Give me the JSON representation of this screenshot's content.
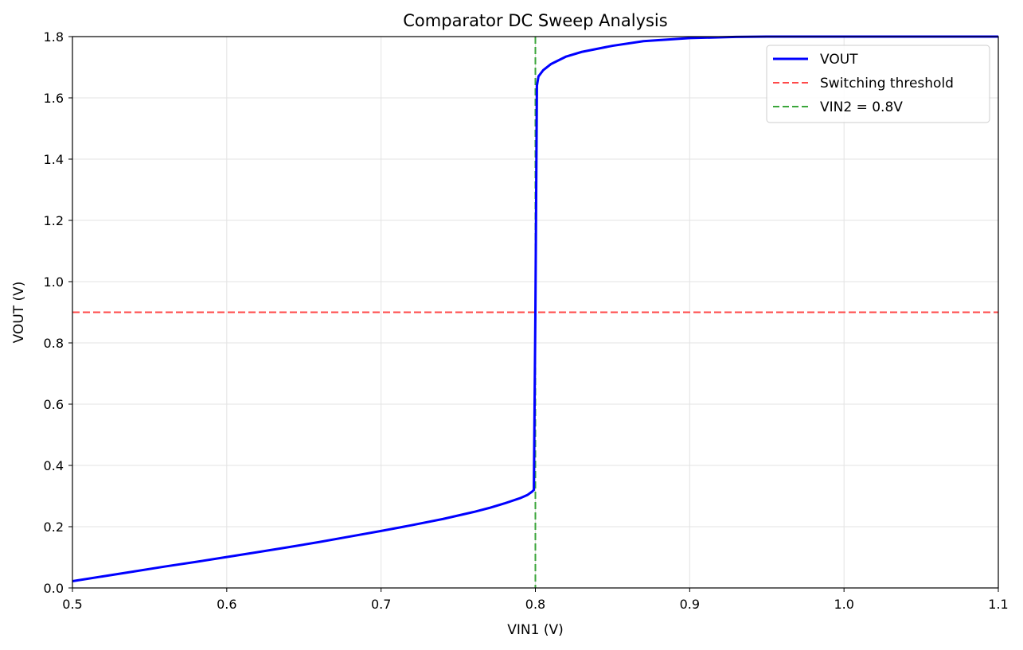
{
  "chart_data": {
    "type": "line",
    "title": "Comparator DC Sweep Analysis",
    "xlabel": "VIN1 (V)",
    "ylabel": "VOUT (V)",
    "xlim": [
      0.5,
      1.1
    ],
    "ylim": [
      0.0,
      1.8
    ],
    "xticks": [
      "0.5",
      "0.6",
      "0.7",
      "0.8",
      "0.9",
      "1.0",
      "1.1"
    ],
    "xtick_values": [
      0.5,
      0.6,
      0.7,
      0.8,
      0.9,
      1.0,
      1.1
    ],
    "yticks": [
      "0.0",
      "0.2",
      "0.4",
      "0.6",
      "0.8",
      "1.0",
      "1.2",
      "1.4",
      "1.6",
      "1.8"
    ],
    "ytick_values": [
      0.0,
      0.2,
      0.4,
      0.6,
      0.8,
      1.0,
      1.2,
      1.4,
      1.6,
      1.8
    ],
    "grid": true,
    "legend_position": "top-right",
    "series": [
      {
        "name": "VOUT",
        "color": "#0000ff",
        "style": "solid",
        "x": [
          0.5,
          0.52,
          0.54,
          0.56,
          0.58,
          0.6,
          0.62,
          0.64,
          0.66,
          0.68,
          0.7,
          0.72,
          0.74,
          0.76,
          0.77,
          0.78,
          0.79,
          0.795,
          0.798,
          0.799,
          0.8,
          0.801,
          0.802,
          0.805,
          0.81,
          0.82,
          0.83,
          0.85,
          0.87,
          0.9,
          0.93,
          0.95,
          1.0,
          1.05,
          1.1
        ],
        "y": [
          0.022,
          0.038,
          0.054,
          0.07,
          0.085,
          0.101,
          0.117,
          0.133,
          0.15,
          0.168,
          0.186,
          0.205,
          0.225,
          0.248,
          0.261,
          0.276,
          0.293,
          0.304,
          0.315,
          0.32,
          0.9,
          1.64,
          1.67,
          1.69,
          1.71,
          1.735,
          1.75,
          1.77,
          1.785,
          1.795,
          1.799,
          1.8,
          1.8,
          1.8,
          1.8
        ]
      },
      {
        "name": "Switching threshold",
        "color": "#ff4a4a",
        "style": "dashed",
        "orientation": "horizontal",
        "value": 0.9
      },
      {
        "name": "VIN2 = 0.8V",
        "color": "#3aa63a",
        "style": "dashed",
        "orientation": "vertical",
        "value": 0.8
      }
    ]
  }
}
